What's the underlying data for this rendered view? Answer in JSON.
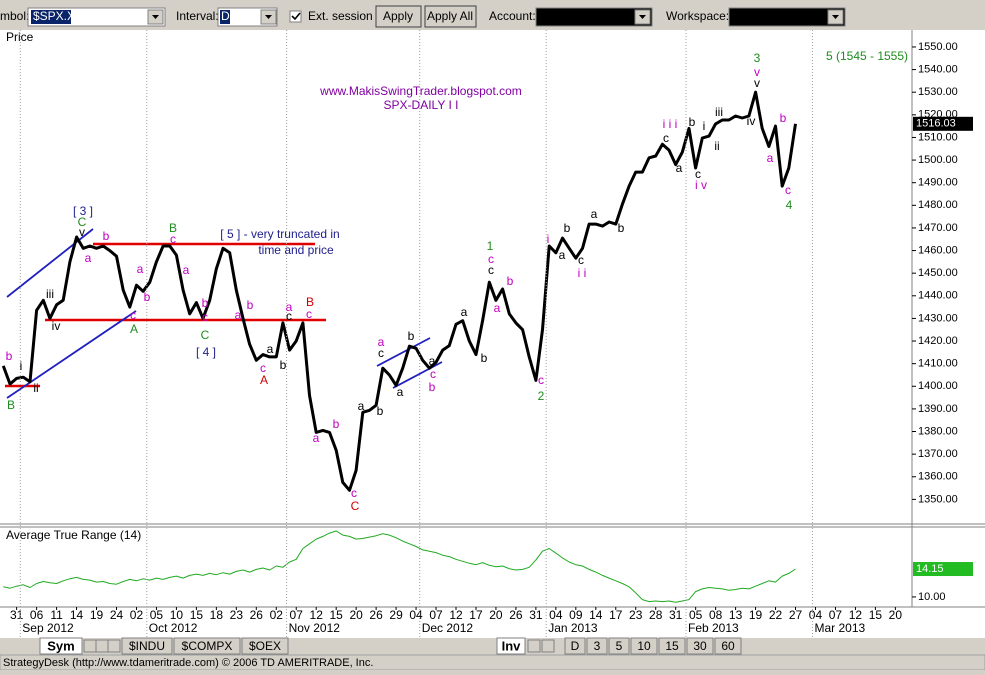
{
  "toolbar": {
    "symbol_label": "mbol:",
    "symbol": "$SPX.X",
    "interval_label": "Interval:",
    "interval": "D",
    "ext_session": "Ext. session",
    "apply": "Apply",
    "apply_all": "Apply All",
    "account_label": "Account:",
    "workspace_label": "Workspace:"
  },
  "chart_data": [
    {
      "type": "line",
      "panel_label": "Price",
      "title": "www.MakisSwingTrader.blogspot.com",
      "subtitle": "SPX-DAILY I I",
      "color": "#000000",
      "categories": [
        null,
        null,
        "31",
        null,
        null,
        "06",
        null,
        null,
        "11",
        null,
        null,
        "14",
        null,
        null,
        "19",
        null,
        null,
        "24",
        null,
        null,
        "02",
        null,
        null,
        "05",
        null,
        null,
        "10",
        null,
        null,
        "15",
        null,
        null,
        "18",
        null,
        null,
        "23",
        null,
        null,
        "26",
        null,
        null,
        "02",
        null,
        null,
        "07",
        null,
        null,
        "12",
        null,
        null,
        "15",
        null,
        null,
        "20",
        null,
        null,
        "26",
        null,
        null,
        "29",
        null,
        null,
        "04",
        null,
        null,
        "07",
        null,
        null,
        "12",
        null,
        null,
        "17",
        null,
        null,
        "20",
        null,
        null,
        "26",
        null,
        null,
        "31",
        null,
        null,
        "04",
        null,
        null,
        "09",
        null,
        null,
        "14",
        null,
        null,
        "17",
        null,
        null,
        "23",
        null,
        null,
        "28",
        null,
        null,
        "31",
        null,
        null,
        "05",
        null,
        null,
        "08",
        null,
        null,
        "13",
        null,
        null,
        "19",
        null,
        null,
        "22",
        null,
        null,
        "27",
        null,
        null,
        "04",
        null,
        null,
        "07",
        null,
        null,
        "12",
        null,
        null,
        "15",
        null,
        null,
        "20",
        null,
        null
      ],
      "months": [
        null,
        null,
        null,
        "Sep 2012",
        null,
        null,
        null,
        null,
        null,
        null,
        null,
        null,
        null,
        null,
        null,
        null,
        null,
        null,
        null,
        null,
        null,
        null,
        "Oct 2012",
        null,
        null,
        null,
        null,
        null,
        null,
        null,
        null,
        null,
        null,
        null,
        null,
        null,
        null,
        null,
        null,
        null,
        null,
        null,
        null,
        "Nov 2012",
        null,
        null,
        null,
        null,
        null,
        null,
        null,
        null,
        null,
        null,
        null,
        null,
        null,
        null,
        null,
        null,
        null,
        null,
        null,
        "Dec 2012",
        null,
        null,
        null,
        null,
        null,
        null,
        null,
        null,
        null,
        null,
        null,
        null,
        null,
        null,
        null,
        null,
        null,
        null,
        "Jan 2013",
        null,
        null,
        null,
        null,
        null,
        null,
        null,
        null,
        null,
        null,
        null,
        null,
        null,
        null,
        null,
        null,
        null,
        null,
        null,
        null,
        "Feb 2013",
        null,
        null,
        null,
        null,
        null,
        null,
        null,
        null,
        null,
        null,
        null,
        null,
        null,
        null,
        null,
        null,
        null,
        null,
        "Mar 2013",
        null,
        null,
        null,
        null,
        null,
        null,
        null,
        null,
        null,
        null,
        null,
        null,
        null,
        null
      ],
      "values": [
        1409,
        1401,
        1403.5,
        1404,
        1402,
        1433.6,
        1438,
        1430,
        1436,
        1438,
        1455,
        1466,
        1461,
        1462,
        1461,
        1462,
        1460,
        1457.5,
        1442.5,
        1435,
        1444.7,
        1442,
        1446,
        1455,
        1462,
        1462,
        1458,
        1442.5,
        1432,
        1437,
        1430,
        1438,
        1452,
        1461,
        1459,
        1442.5,
        1430,
        1418.6,
        1411.5,
        1414,
        1413,
        1413,
        1428,
        1416,
        1420,
        1428,
        1396,
        1379.6,
        1380.5,
        1379.6,
        1371.7,
        1357.5,
        1354,
        1362.8,
        1388.5,
        1389.4,
        1391.6,
        1408,
        1405,
        1400.4,
        1408,
        1417.7,
        1416.8,
        1411.5,
        1408,
        1410.6,
        1416,
        1418,
        1427.4,
        1429,
        1420,
        1414,
        1429,
        1446,
        1438,
        1443,
        1432,
        1428,
        1425,
        1413,
        1402.6,
        1425,
        1462,
        1459,
        1465.5,
        1461,
        1456.6,
        1461,
        1471.7,
        1471.7,
        1470.8,
        1472.6,
        1471.7,
        1480.5,
        1488.5,
        1494.7,
        1494.7,
        1501,
        1501.8,
        1507,
        1504.4,
        1498,
        1503.5,
        1514,
        1496.5,
        1509.7,
        1510.6,
        1516,
        1517.7,
        1517.7,
        1519.5,
        1518.6,
        1519.5,
        1530,
        1514,
        1506,
        1515,
        1488.5,
        1496.5,
        1516.03,
        null,
        null,
        null,
        null,
        null,
        null,
        null,
        null,
        null,
        null,
        null,
        null,
        null,
        null,
        null,
        null,
        null
      ],
      "last_label": "1516.03",
      "ylim": [
        1340,
        1557.5
      ],
      "yticks": [
        {
          "value": 1350,
          "label": "1350.00"
        },
        {
          "value": 1360,
          "label": "1360.00"
        },
        {
          "value": 1370,
          "label": "1370.00"
        },
        {
          "value": 1380,
          "label": "1380.00"
        },
        {
          "value": 1390,
          "label": "1390.00"
        },
        {
          "value": 1400,
          "label": "1400.00"
        },
        {
          "value": 1410,
          "label": "1410.00"
        },
        {
          "value": 1420,
          "label": "1420.00"
        },
        {
          "value": 1430,
          "label": "1430.00"
        },
        {
          "value": 1440,
          "label": "1440.00"
        },
        {
          "value": 1450,
          "label": "1450.00"
        },
        {
          "value": 1460,
          "label": "1460.00"
        },
        {
          "value": 1470,
          "label": "1470.00"
        },
        {
          "value": 1480,
          "label": "1480.00"
        },
        {
          "value": 1490,
          "label": "1490.00"
        },
        {
          "value": 1500,
          "label": "1500.00"
        },
        {
          "value": 1510,
          "label": "1510.00"
        },
        {
          "value": 1520,
          "label": "1520.00"
        },
        {
          "value": 1530,
          "label": "1530.00"
        },
        {
          "value": 1540,
          "label": "1540.00"
        },
        {
          "value": 1550,
          "label": "1550.00"
        }
      ],
      "annotations": [
        {
          "text": "b",
          "color": "#c000c0"
        },
        {
          "text": "i",
          "color": "#000000"
        },
        {
          "text": "ii",
          "color": "#000000"
        },
        {
          "text": "B",
          "color": "#1e8c1e"
        },
        {
          "text": "iii",
          "color": "#000000"
        },
        {
          "text": "iv",
          "color": "#000000"
        },
        {
          "text": "[ 3 ]",
          "color": "#20208c"
        },
        {
          "text": "C",
          "color": "#1e8c1e"
        },
        {
          "text": "v",
          "color": "#000000"
        },
        {
          "text": "a",
          "color": "#c000c0"
        },
        {
          "text": "b",
          "color": "#c000c0"
        },
        {
          "text": "a",
          "color": "#c000c0"
        },
        {
          "text": "b",
          "color": "#c000c0"
        },
        {
          "text": "c",
          "color": "#c000c0"
        },
        {
          "text": "A",
          "color": "#1e8c1e"
        },
        {
          "text": "B",
          "color": "#1e8c1e"
        },
        {
          "text": "c",
          "color": "#c000c0"
        },
        {
          "text": "a",
          "color": "#c000c0"
        },
        {
          "text": "b",
          "color": "#c000c0"
        },
        {
          "text": "c",
          "color": "#c000c0"
        },
        {
          "text": "C",
          "color": "#1e8c1e"
        },
        {
          "text": "[ 4 ]",
          "color": "#20208c"
        },
        {
          "text": "a",
          "color": "#c000c0"
        },
        {
          "text": "b",
          "color": "#c000c0"
        },
        {
          "text": "a",
          "color": "#000000"
        },
        {
          "text": "b",
          "color": "#000000"
        },
        {
          "text": "c",
          "color": "#c000c0"
        },
        {
          "text": "A",
          "color": "#d00000"
        },
        {
          "text": "a",
          "color": "#c000c0"
        },
        {
          "text": "c",
          "color": "#000000"
        },
        {
          "text": "B",
          "color": "#d00000"
        },
        {
          "text": "c",
          "color": "#c000c0"
        },
        {
          "text": "a",
          "color": "#c000c0"
        },
        {
          "text": "b",
          "color": "#c000c0"
        },
        {
          "text": "c",
          "color": "#c000c0"
        },
        {
          "text": "C",
          "color": "#d00000"
        },
        {
          "text": "a",
          "color": "#000000"
        },
        {
          "text": "b",
          "color": "#000000"
        },
        {
          "text": "a",
          "color": "#c000c0"
        },
        {
          "text": "c",
          "color": "#000000"
        },
        {
          "text": "a",
          "color": "#000000"
        },
        {
          "text": "b",
          "color": "#000000"
        },
        {
          "text": "a",
          "color": "#000000"
        },
        {
          "text": "c",
          "color": "#c000c0"
        },
        {
          "text": "b",
          "color": "#c000c0"
        },
        {
          "text": "a",
          "color": "#000000"
        },
        {
          "text": "b",
          "color": "#000000"
        },
        {
          "text": "1",
          "color": "#1e8c1e"
        },
        {
          "text": "c",
          "color": "#c000c0"
        },
        {
          "text": "c",
          "color": "#000000"
        },
        {
          "text": "a",
          "color": "#c000c0"
        },
        {
          "text": "b",
          "color": "#c000c0"
        },
        {
          "text": "c",
          "color": "#c000c0"
        },
        {
          "text": "2",
          "color": "#1e8c1e"
        },
        {
          "text": "i",
          "color": "#c000c0"
        },
        {
          "text": "a",
          "color": "#000000"
        },
        {
          "text": "b",
          "color": "#000000"
        },
        {
          "text": "c",
          "color": "#000000"
        },
        {
          "text": "i i",
          "color": "#c000c0"
        },
        {
          "text": "a",
          "color": "#000000"
        },
        {
          "text": "b",
          "color": "#000000"
        },
        {
          "text": "i i i",
          "color": "#c000c0"
        },
        {
          "text": "c",
          "color": "#000000"
        },
        {
          "text": "a",
          "color": "#000000"
        },
        {
          "text": "b",
          "color": "#000000"
        },
        {
          "text": "c",
          "color": "#000000"
        },
        {
          "text": "i v",
          "color": "#c000c0"
        },
        {
          "text": "i",
          "color": "#000000"
        },
        {
          "text": "ii",
          "color": "#000000"
        },
        {
          "text": "iii",
          "color": "#000000"
        },
        {
          "text": "3",
          "color": "#1e8c1e"
        },
        {
          "text": "v",
          "color": "#c000c0"
        },
        {
          "text": "v",
          "color": "#000000"
        },
        {
          "text": "iv",
          "color": "#000000"
        },
        {
          "text": "a",
          "color": "#c000c0"
        },
        {
          "text": "b",
          "color": "#c000c0"
        },
        {
          "text": "c",
          "color": "#c000c0"
        },
        {
          "text": "4",
          "color": "#1e8c1e"
        },
        {
          "text": "[ 5 ] - very truncated in",
          "color": "#20208c"
        },
        {
          "text": "time and price",
          "color": "#20208c"
        },
        {
          "text": "5 (1545 - 1555)",
          "color": "#1e8c1e"
        }
      ]
    },
    {
      "type": "line",
      "panel_label": "Average True Range (14)",
      "color": "#22aa22",
      "values": [
        11.5,
        11.3,
        11.6,
        11.8,
        11.4,
        12.0,
        12.3,
        12.1,
        12.0,
        12.4,
        12.7,
        12.9,
        12.6,
        12.5,
        12.2,
        12.3,
        12.0,
        11.9,
        12.3,
        12.6,
        12.4,
        12.7,
        12.5,
        12.8,
        12.6,
        12.9,
        13.1,
        12.8,
        13.2,
        13.4,
        13.2,
        13.5,
        13.3,
        13.6,
        13.4,
        13.8,
        14.0,
        13.7,
        14.1,
        14.3,
        14.0,
        14.6,
        14.4,
        15.2,
        15.6,
        17.2,
        17.9,
        18.6,
        19.0,
        19.5,
        19.8,
        19.2,
        19.0,
        18.6,
        18.7,
        18.9,
        19.1,
        19.4,
        19.2,
        18.8,
        18.3,
        17.9,
        17.5,
        17.0,
        16.8,
        16.6,
        16.2,
        16.0,
        15.6,
        15.3,
        15.0,
        14.8,
        15.1,
        14.7,
        14.5,
        14.6,
        14.2,
        14.0,
        14.1,
        14.4,
        15.5,
        16.8,
        17.2,
        16.5,
        15.8,
        15.2,
        14.8,
        14.6,
        14.1,
        13.7,
        13.2,
        12.8,
        12.4,
        12.0,
        11.5,
        10.6,
        9.6,
        9.3,
        9.4,
        9.3,
        9.4,
        9.2,
        9.4,
        9.6,
        10.8,
        11.2,
        11.4,
        11.3,
        11.2,
        11.0,
        11.1,
        11.3,
        11.2,
        11.6,
        12.0,
        12.4,
        12.2,
        13.1,
        13.5,
        14.15,
        null,
        null,
        null,
        null,
        null,
        null,
        null,
        null,
        null,
        null,
        null,
        null,
        null,
        null,
        null,
        null,
        null
      ],
      "last_label": "14.15",
      "ylim": [
        8.8,
        20.4
      ],
      "yticks": [
        {
          "value": 10,
          "label": "10.00"
        }
      ]
    }
  ],
  "tabs": {
    "sym": "Sym",
    "symbols": [
      "$INDU",
      "$COMPX",
      "$OEX"
    ],
    "inv": "Inv",
    "intervals": [
      "D",
      "3",
      "5",
      "10",
      "15",
      "30",
      "60"
    ]
  },
  "status": "StrategyDesk (http://www.tdameritrade.com) © 2006 TD AMERITRADE, Inc."
}
